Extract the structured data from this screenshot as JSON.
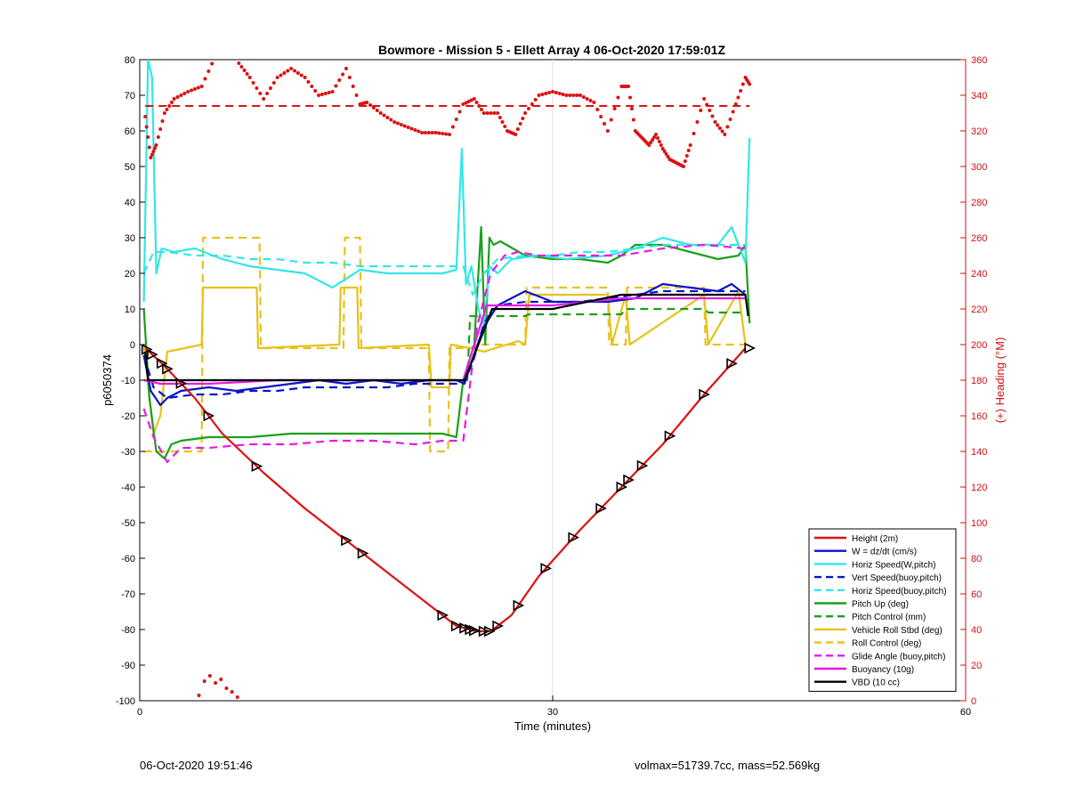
{
  "footer": {
    "timestamp": "06-Oct-2020 19:51:46",
    "volmax_mass": "volmax=51739.7cc, mass=52.569kg"
  },
  "chart_data": {
    "type": "line",
    "title": "Bowmore - Mission 5 - Ellett Array 4 06-Oct-2020 17:59:01Z",
    "xlabel": "Time (minutes)",
    "ylabel": "p6050374",
    "y2label": "(+) Heading (°M)",
    "xlim": [
      0,
      60
    ],
    "ylim": [
      -100,
      80
    ],
    "y2lim": [
      0,
      360
    ],
    "xticks": [
      0,
      30,
      60
    ],
    "yticks": [
      -100,
      -90,
      -80,
      -70,
      -60,
      -50,
      -40,
      -30,
      -20,
      -10,
      0,
      10,
      20,
      30,
      40,
      50,
      60,
      70,
      80
    ],
    "y2ticks": [
      0,
      20,
      40,
      60,
      80,
      100,
      120,
      140,
      160,
      180,
      200,
      220,
      240,
      260,
      280,
      300,
      320,
      340,
      360
    ],
    "grid": "x",
    "legend_position": "bottom-right",
    "colors": {
      "height": "#dd1111",
      "w": "#0a14c8",
      "horiz": "#33e6e6",
      "pitch": "#1aa01a",
      "roll": "#e6c21a",
      "glide": "#e61ae6",
      "buoy": "#e61ae6",
      "vbd": "#000000",
      "heading": "#dd1111",
      "right_axis": "#cc1111"
    },
    "series": [
      {
        "name": "Height (2m)",
        "color": "#dd1111",
        "style": "solid",
        "x": [
          0.4,
          1.8,
          4,
          6,
          9,
          12,
          16,
          20,
          23,
          24.5,
          25.5,
          27,
          29,
          32,
          35,
          38,
          41,
          44
        ],
        "y": [
          -1,
          -6,
          -15,
          -25,
          -36,
          -46,
          -58,
          -70,
          -79,
          -80.5,
          -80.5,
          -76,
          -65,
          -52,
          -40,
          -28,
          -14,
          -1
        ]
      },
      {
        "name": "W = dz/dt (cm/s)",
        "color": "#0a14c8",
        "style": "solid",
        "x": [
          0.3,
          0.8,
          1.5,
          2,
          3,
          5,
          7,
          9,
          11,
          13,
          15,
          17,
          19,
          21,
          23,
          23.6,
          24,
          25,
          26,
          27,
          28,
          30,
          32,
          34,
          36,
          38,
          40,
          42,
          43,
          44
        ],
        "y": [
          -3,
          -13,
          -17,
          -15,
          -13,
          -12,
          -13,
          -12,
          -11,
          -10,
          -11,
          -10,
          -11,
          -10,
          -10,
          -11,
          -6,
          5,
          11,
          13,
          15,
          12,
          12,
          12,
          13,
          17,
          16,
          15,
          17,
          14
        ]
      },
      {
        "name": "Horiz Speed(W,pitch)",
        "color": "#33e6e6",
        "style": "solid",
        "x": [
          0.3,
          0.6,
          0.9,
          1.2,
          1.6,
          2.5,
          4,
          6,
          8,
          10,
          12,
          14,
          16,
          18,
          20,
          22,
          23,
          23.4,
          23.7,
          24.1,
          24.6,
          25,
          25.4,
          26,
          27,
          29,
          31,
          34,
          36,
          38,
          40,
          42,
          43,
          44,
          44.3
        ],
        "y": [
          12,
          80,
          75,
          20,
          27,
          26,
          27,
          24,
          22,
          21,
          20,
          16,
          21,
          20,
          20,
          20,
          21,
          55,
          17,
          22,
          10,
          5,
          22,
          20,
          24,
          25,
          24,
          25,
          27,
          30,
          28,
          28,
          33,
          23,
          58
        ]
      },
      {
        "name": "Vert Speed(buoy,pitch)",
        "color": "#0a14c8",
        "style": "dashed",
        "x": [
          0.3,
          1,
          2,
          4,
          6,
          8,
          10,
          12,
          14,
          16,
          18,
          20,
          22,
          23.5,
          24.2,
          25,
          26,
          28,
          30,
          32,
          34,
          36,
          38,
          40,
          42,
          44
        ],
        "y": [
          -3,
          -12,
          -15,
          -14,
          -14,
          -13,
          -13,
          -12,
          -12,
          -12,
          -12,
          -11,
          -11,
          -11,
          -5,
          6,
          11,
          12,
          12,
          12,
          13,
          14,
          15,
          15,
          15,
          15
        ]
      },
      {
        "name": "Horiz Speed(buoy,pitch)",
        "color": "#33e6e6",
        "style": "dashed",
        "x": [
          0.3,
          1,
          2,
          4,
          6,
          8,
          10,
          12,
          14,
          16,
          18,
          20,
          22,
          23.5,
          24.2,
          25,
          26,
          28,
          30,
          32,
          34,
          36,
          38,
          40,
          42,
          44
        ],
        "y": [
          20,
          26,
          26,
          25,
          25,
          24,
          24,
          23,
          23,
          22,
          22,
          22,
          22,
          22,
          14,
          20,
          24,
          25,
          25,
          26,
          26,
          27,
          28,
          28,
          28,
          28
        ]
      },
      {
        "name": "Pitch Up (deg)",
        "color": "#1aa01a",
        "style": "solid",
        "x": [
          0.3,
          0.7,
          1.2,
          1.8,
          2.3,
          3,
          5,
          8,
          11,
          14,
          17,
          20,
          22,
          23,
          23.5,
          24.3,
          24.8,
          25.1,
          25.4,
          25.7,
          26.2,
          28,
          30,
          32,
          34,
          35,
          36,
          38,
          40,
          42,
          43.5,
          44,
          44.3
        ],
        "y": [
          10,
          -15,
          -30,
          -32,
          -28,
          -27,
          -26,
          -26,
          -25,
          -25,
          -25,
          -25,
          -25,
          -26,
          -10,
          0,
          33,
          0,
          30,
          28,
          29,
          25,
          24,
          24,
          23,
          25,
          28,
          28,
          26,
          24,
          25,
          28,
          6
        ]
      },
      {
        "name": "Pitch Control (mm)",
        "color": "#1aa01a",
        "style": "dashed",
        "x": [
          0.3,
          23.8,
          24,
          28,
          28.3,
          35,
          35.3,
          41,
          41.3,
          44
        ],
        "y": [
          -10,
          -10,
          8,
          8,
          8.5,
          8.5,
          10,
          10,
          9,
          9
        ]
      },
      {
        "name": "Vehicle Roll Stbd (deg)",
        "color": "#e6c21a",
        "style": "solid",
        "x": [
          0.3,
          1,
          1.5,
          2,
          4.5,
          4.6,
          8.5,
          8.6,
          14.5,
          14.6,
          15.8,
          15.9,
          21,
          21.2,
          22.5,
          22.6,
          24,
          25,
          27.5,
          28,
          28.3,
          34,
          34.3,
          35.3,
          35.6,
          41,
          41.3,
          43.5,
          44
        ],
        "y": [
          0,
          -25,
          -20,
          -2,
          0,
          16,
          16,
          -1,
          0,
          16,
          16,
          -1,
          0,
          -12,
          -12,
          0,
          -1,
          -2,
          1,
          0,
          14,
          14,
          0,
          14,
          0,
          14,
          0,
          15,
          0
        ]
      },
      {
        "name": "Roll Control (deg)",
        "color": "#e6c21a",
        "style": "dashed",
        "x": [
          0.3,
          4.5,
          4.6,
          8.7,
          8.8,
          14.8,
          14.9,
          16,
          16.1,
          21,
          21.1,
          22.4,
          22.5,
          24,
          24.5,
          28,
          28.1,
          34,
          34.1,
          35.3,
          35.4,
          41,
          41.1,
          44
        ],
        "y": [
          -30,
          -30,
          30,
          30,
          -1,
          -1,
          30,
          30,
          -1,
          -1,
          -30,
          -30,
          -1,
          -1,
          0,
          0,
          16,
          16,
          0,
          0,
          16,
          16,
          0,
          0
        ]
      },
      {
        "name": "Glide Angle (buoy,pitch)",
        "color": "#e61ae6",
        "style": "dashed",
        "x": [
          0.3,
          1,
          2,
          3,
          5,
          8,
          11,
          14,
          17,
          20,
          22,
          23.5,
          24.5,
          25.5,
          26.5,
          27.5,
          29,
          32,
          35,
          38,
          41,
          44
        ],
        "y": [
          -18,
          -26,
          -33,
          -29,
          -29,
          -28,
          -28,
          -27,
          -27,
          -28,
          -27,
          -27,
          5,
          20,
          25,
          26,
          25,
          25,
          25,
          27,
          28,
          27
        ]
      },
      {
        "name": "Buoyancy (10g)",
        "color": "#e61ae6",
        "style": "solid",
        "x": [
          0.3,
          1.5,
          5,
          10,
          15,
          20,
          23.5,
          25.2,
          30,
          35,
          40,
          44
        ],
        "y": [
          -10,
          -11,
          -11,
          -10,
          -10,
          -10,
          -10,
          11,
          11,
          13,
          13,
          13
        ]
      },
      {
        "name": "VBD (10 cc)",
        "color": "#000000",
        "style": "solid",
        "x": [
          0.4,
          0.6,
          23.6,
          25.6,
          30,
          35,
          40,
          44,
          44.2
        ],
        "y": [
          -2,
          -10,
          -10,
          10,
          10,
          14,
          14,
          14,
          8
        ]
      }
    ],
    "heading": {
      "axis": "right",
      "color": "#dd1111",
      "mean": 334,
      "x": [
        0.4,
        0.8,
        1.2,
        1.8,
        2.5,
        3.5,
        4.5,
        5.5,
        6.5,
        7.2,
        8,
        9,
        10,
        11,
        12,
        13,
        14,
        15,
        16,
        16.5,
        17.5,
        18.5,
        19.5,
        20.5,
        21.5,
        22.5,
        23.5,
        24.3,
        25,
        26,
        26.7,
        27.3,
        28,
        29,
        30,
        31,
        32,
        33,
        34,
        35,
        35.5,
        36,
        36.5,
        37,
        37.5,
        38,
        38.5,
        39,
        39.5,
        40,
        41,
        41.8,
        42.5,
        43.3,
        44,
        44.4
      ],
      "y": [
        328,
        305,
        312,
        330,
        338,
        342,
        345,
        362,
        372,
        358,
        350,
        338,
        350,
        355,
        350,
        340,
        342,
        355,
        335,
        336,
        330,
        325,
        322,
        319,
        319,
        318,
        335,
        338,
        330,
        330,
        320,
        318,
        330,
        340,
        342,
        340,
        340,
        336,
        320,
        345,
        345,
        320,
        316,
        312,
        318,
        310,
        304,
        302,
        300,
        312,
        338,
        325,
        318,
        335,
        350,
        345
      ],
      "outliers_x": [
        4.3,
        4.7,
        5.1,
        5.5,
        5.9,
        6.3,
        6.7,
        7.1
      ],
      "outliers_y": [
        3,
        11,
        14,
        10,
        12,
        7,
        5,
        2
      ]
    },
    "height_markers_x": [
      0.5,
      0.9,
      1.6,
      2,
      3,
      5,
      8.5,
      15,
      16.2,
      22,
      23,
      23.6,
      24,
      24.3,
      25,
      25.4,
      26,
      27.5,
      29.5,
      31.5,
      33.5,
      35,
      35.5,
      36.5,
      38.5,
      41,
      43,
      44.3
    ],
    "legend": [
      "Height (2m)",
      "W = dz/dt (cm/s)",
      "Horiz Speed(W,pitch)",
      "Vert Speed(buoy,pitch)",
      "Horiz Speed(buoy,pitch)",
      "Pitch Up (deg)",
      "Pitch Control (mm)",
      "Vehicle Roll Stbd (deg)",
      "Roll Control (deg)",
      "Glide Angle (buoy,pitch)",
      "Buoyancy (10g)",
      "VBD (10 cc)"
    ]
  }
}
